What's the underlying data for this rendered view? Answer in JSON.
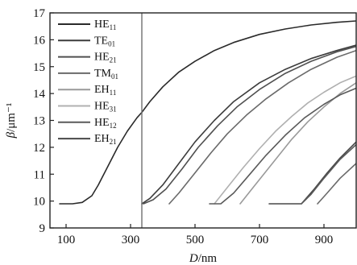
{
  "chart_data": {
    "type": "line",
    "title": "",
    "xlabel": "D/nm",
    "ylabel": "β/μm⁻¹",
    "xlim": [
      50,
      1000
    ],
    "ylim": [
      9,
      17
    ],
    "x_ticks": [
      100,
      300,
      500,
      700,
      900
    ],
    "y_ticks": [
      9,
      10,
      11,
      12,
      13,
      14,
      15,
      16,
      17
    ],
    "vertical_marker_x": 335,
    "legend_position": "top-left",
    "series": [
      {
        "name": "HE11",
        "base": "HE",
        "sub": "11",
        "color": "#2a2a2a",
        "x": [
          80,
          120,
          150,
          180,
          200,
          230,
          260,
          290,
          320,
          335,
          360,
          400,
          450,
          500,
          560,
          620,
          700,
          780,
          860,
          940,
          1000
        ],
        "y": [
          9.9,
          9.9,
          9.95,
          10.2,
          10.6,
          11.3,
          12.0,
          12.6,
          13.1,
          13.3,
          13.7,
          14.25,
          14.8,
          15.2,
          15.6,
          15.9,
          16.2,
          16.4,
          16.55,
          16.65,
          16.7
        ]
      },
      {
        "name": "TE01",
        "base": "TE",
        "sub": "01",
        "color": "#3c3c3c",
        "x": [
          335,
          360,
          400,
          450,
          500,
          560,
          620,
          700,
          780,
          860,
          940,
          1000
        ],
        "y": [
          9.9,
          10.1,
          10.6,
          11.4,
          12.2,
          13.0,
          13.7,
          14.4,
          14.9,
          15.3,
          15.6,
          15.8
        ]
      },
      {
        "name": "HE21",
        "base": "HE",
        "sub": "21",
        "color": "#505050",
        "x": [
          340,
          370,
          410,
          460,
          510,
          570,
          630,
          700,
          780,
          860,
          940,
          1000
        ],
        "y": [
          9.9,
          10.05,
          10.45,
          11.2,
          12.0,
          12.8,
          13.5,
          14.15,
          14.75,
          15.2,
          15.55,
          15.75
        ]
      },
      {
        "name": "TM01",
        "base": "TM",
        "sub": "01",
        "color": "#6a6a6a",
        "x": [
          420,
          450,
          500,
          550,
          600,
          660,
          720,
          790,
          860,
          940,
          1000
        ],
        "y": [
          9.9,
          10.3,
          11.05,
          11.8,
          12.5,
          13.2,
          13.8,
          14.4,
          14.9,
          15.35,
          15.6
        ]
      },
      {
        "name": "EH11",
        "base": "EH",
        "sub": "11",
        "color": "#9a9a9a",
        "x": [
          640,
          680,
          720,
          760,
          800,
          850,
          900,
          950,
          1000
        ],
        "y": [
          9.9,
          10.5,
          11.1,
          11.7,
          12.3,
          12.95,
          13.5,
          14.0,
          14.4
        ]
      },
      {
        "name": "HE31",
        "base": "HE",
        "sub": "31",
        "color": "#b0b0b0",
        "x": [
          560,
          600,
          650,
          700,
          750,
          800,
          850,
          900,
          950,
          1000
        ],
        "y": [
          9.9,
          10.5,
          11.25,
          11.95,
          12.6,
          13.15,
          13.65,
          14.05,
          14.4,
          14.65
        ]
      },
      {
        "name": "HE12",
        "base": "HE",
        "sub": "12",
        "color": "#5a5a5a",
        "x": [
          545,
          580,
          620,
          670,
          720,
          780,
          840,
          900,
          950,
          1000
        ],
        "y": [
          9.9,
          9.9,
          10.3,
          11.0,
          11.7,
          12.45,
          13.1,
          13.6,
          13.95,
          14.2
        ]
      },
      {
        "name": "EH21",
        "base": "EH",
        "sub": "21",
        "color": "#484848",
        "x": [
          730,
          780,
          830,
          870,
          910,
          950,
          1000
        ],
        "y": [
          9.9,
          9.9,
          9.9,
          10.45,
          11.05,
          11.6,
          12.2
        ]
      },
      {
        "name": "",
        "color": "#5a5a5a",
        "x": [
          830,
          860,
          900,
          950,
          1000
        ],
        "y": [
          9.9,
          10.25,
          10.85,
          11.55,
          12.1
        ]
      },
      {
        "name": "",
        "color": "#6a6a6a",
        "x": [
          880,
          910,
          950,
          1000
        ],
        "y": [
          9.9,
          10.3,
          10.85,
          11.4
        ]
      }
    ]
  }
}
